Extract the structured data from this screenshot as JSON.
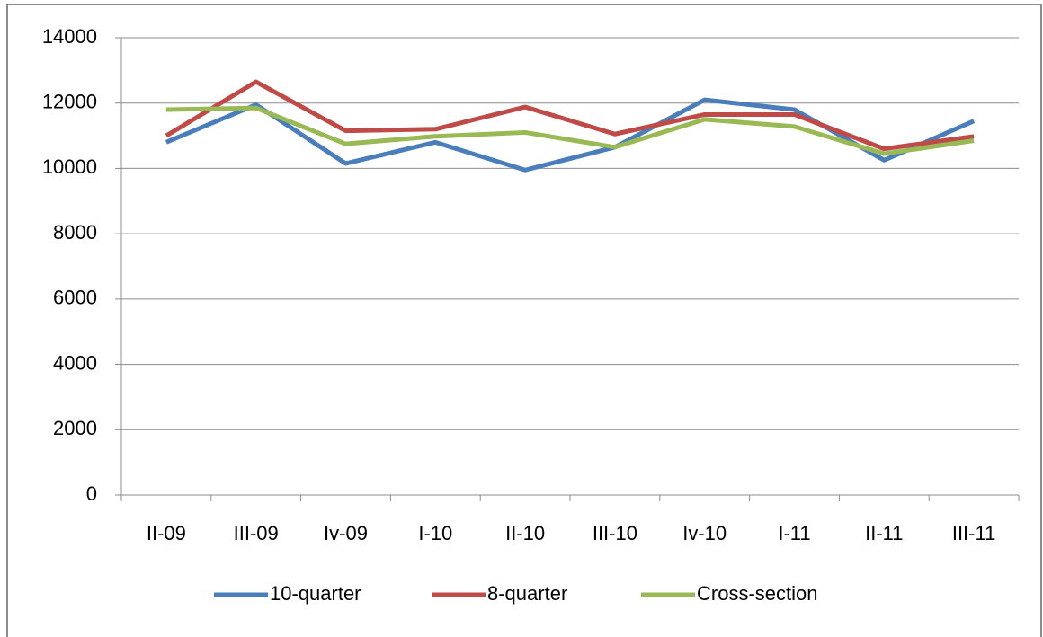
{
  "chart_data": {
    "type": "line",
    "categories": [
      "II-09",
      "III-09",
      "Iv-09",
      "I-10",
      "II-10",
      "III-10",
      "Iv-10",
      "I-11",
      "II-11",
      "III-11"
    ],
    "series": [
      {
        "name": "10-quarter",
        "color": "#4a7ebb",
        "values": [
          10800,
          11950,
          10150,
          10800,
          9950,
          10650,
          12100,
          11800,
          10250,
          11450
        ]
      },
      {
        "name": "8-quarter",
        "color": "#be4b48",
        "values": [
          11000,
          12650,
          11150,
          11200,
          11880,
          11050,
          11650,
          11650,
          10600,
          10980
        ]
      },
      {
        "name": "Cross-section",
        "color": "#98b954",
        "values": [
          11800,
          11850,
          10750,
          10980,
          11100,
          10650,
          11500,
          11280,
          10450,
          10850
        ]
      }
    ],
    "ylim": [
      0,
      14000
    ],
    "yticks": [
      0,
      2000,
      4000,
      6000,
      8000,
      10000,
      12000,
      14000
    ],
    "grid": true,
    "legend": "bottom"
  }
}
